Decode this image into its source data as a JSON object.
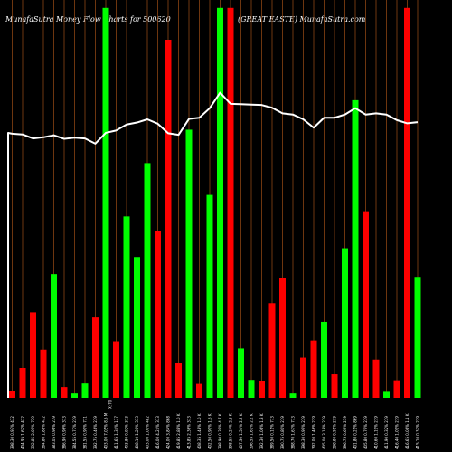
{
  "title": {
    "left": "MunafaSutra  Money Flow  Charts for 500620",
    "middle": "(GREAT EASTE) MunafaSutra.com"
  },
  "colors": {
    "background": "#000000",
    "up": "#00ff00",
    "down": "#ff0000",
    "grid": "#8b4513",
    "line": "#ffffff"
  },
  "chart_data": {
    "type": "bar",
    "bars": [
      {
        "label": "398.30 0.93% 472",
        "value": 1.6,
        "dir": "down"
      },
      {
        "label": "404.95 1.62% 472",
        "value": 7.5,
        "dir": "down"
      },
      {
        "label": "392.85 2.09% 739",
        "value": 21.5,
        "dir": "down"
      },
      {
        "label": "384.80 1.88% 472",
        "value": 12.1,
        "dir": "down"
      },
      {
        "label": "383.05 0.96% 279",
        "value": 31.1,
        "dir": "up"
      },
      {
        "label": "386.90 0.96% 373",
        "value": 2.7,
        "dir": "down"
      },
      {
        "label": "384.55 0.77% 279",
        "value": 1.1,
        "dir": "up"
      },
      {
        "label": "381.55 0.90% 771",
        "value": 3.6,
        "dir": "up"
      },
      {
        "label": "392.75 0.46% 279",
        "value": 20.2,
        "dir": "down"
      },
      {
        "label": "403.00 7.05% 8.5 M",
        "value": 98.0,
        "dir": "up"
      },
      {
        "label": "411.65 1.34% 177",
        "value": 14.2,
        "dir": "down"
      },
      {
        "label": "403.80 0.92% 373",
        "value": 45.6,
        "dir": "up"
      },
      {
        "label": "408.10 1.20% 373",
        "value": 35.4,
        "dir": "up"
      },
      {
        "label": "403.00 1.00% 482",
        "value": 59.0,
        "dir": "up"
      },
      {
        "label": "416.00 4.24% 373",
        "value": 42.0,
        "dir": "down"
      },
      {
        "label": "424.00 3.84% 868",
        "value": 90.0,
        "dir": "down"
      },
      {
        "label": "419.85 2.88% 1.0 K",
        "value": 8.8,
        "dir": "down"
      },
      {
        "label": "413.85 2.36% 373",
        "value": 67.4,
        "dir": "up"
      },
      {
        "label": "408.35 1.48% 1.0 K",
        "value": 3.5,
        "dir": "down"
      },
      {
        "label": "402.50 0.90% 1.6 K",
        "value": 51.0,
        "dir": "up"
      },
      {
        "label": "398.90 0.39% 4.7 K",
        "value": 98.0,
        "dir": "up"
      },
      {
        "label": "398.55 0.24% 2.6 K",
        "value": 98.0,
        "dir": "down"
      },
      {
        "label": "407.30 1.54% 2.2 K",
        "value": 12.4,
        "dir": "up"
      },
      {
        "label": "396.55 1.61% 2.2 K",
        "value": 4.5,
        "dir": "up"
      },
      {
        "label": "392.30 1.06% 1.3 K",
        "value": 4.3,
        "dir": "down"
      },
      {
        "label": "389.50 0.11% 773",
        "value": 23.8,
        "dir": "down"
      },
      {
        "label": "390.75 0.80% 279",
        "value": 30.0,
        "dir": "down"
      },
      {
        "label": "388.70 1.67% 773",
        "value": 1.1,
        "dir": "up"
      },
      {
        "label": "398.30 0.99% 279",
        "value": 10.1,
        "dir": "down"
      },
      {
        "label": "392.00 1.46% 279",
        "value": 14.4,
        "dir": "down"
      },
      {
        "label": "405.00 3.18% 279",
        "value": 19.1,
        "dir": "up"
      },
      {
        "label": "398.80 0.91% 279",
        "value": 5.9,
        "dir": "down"
      },
      {
        "label": "396.75 0.69% 279",
        "value": 37.6,
        "dir": "up"
      },
      {
        "label": "401.80 0.21% 869",
        "value": 74.8,
        "dir": "up"
      },
      {
        "label": "405.80 0.79% 279",
        "value": 46.9,
        "dir": "down"
      },
      {
        "label": "410.60 1.19% 279",
        "value": 9.6,
        "dir": "down"
      },
      {
        "label": "411.90 0.32% 279",
        "value": 1.5,
        "dir": "up"
      },
      {
        "label": "416.40 1.09% 279",
        "value": 4.4,
        "dir": "down"
      },
      {
        "label": "416.65 0.06% 1.1 K",
        "value": 98.0,
        "dir": "down"
      },
      {
        "label": "415.10 0.37% 279",
        "value": 30.4,
        "dir": "up"
      }
    ],
    "x_marker": "X:70",
    "flow_line": [
      66.4,
      66.2,
      65.2,
      65.5,
      66.0,
      65.1,
      65.4,
      65.2,
      63.9,
      66.6,
      67.2,
      68.7,
      69.2,
      70.0,
      68.9,
      66.5,
      66.1,
      70.1,
      70.4,
      72.8,
      76.7,
      73.9,
      73.8,
      73.7,
      73.6,
      72.9,
      71.5,
      71.2,
      70.0,
      67.9,
      70.4,
      70.4,
      71.2,
      72.8,
      71.2,
      71.5,
      71.2,
      69.8,
      69.0,
      69.3
    ],
    "line_start": 66.6,
    "ylim": [
      0,
      100
    ]
  }
}
